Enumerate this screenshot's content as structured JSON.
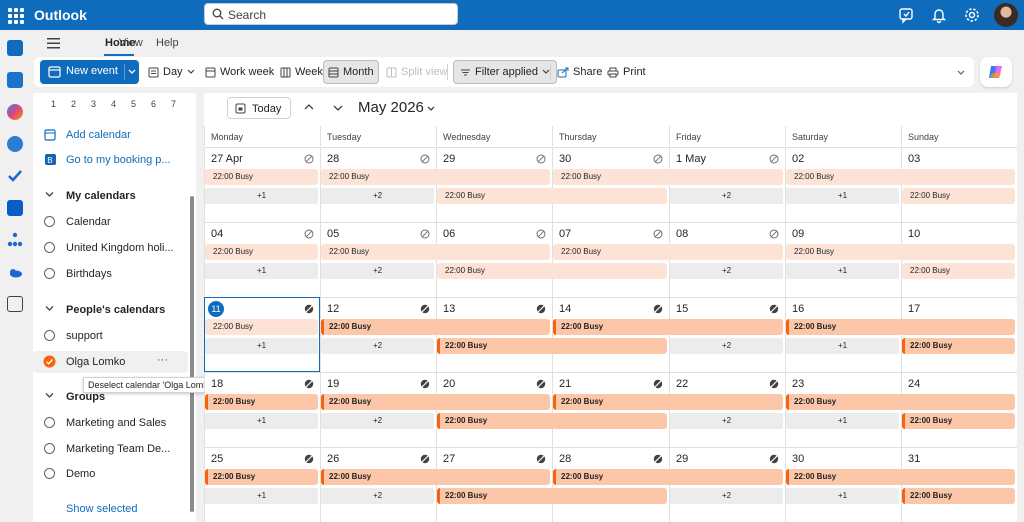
{
  "app": {
    "name": "Outlook"
  },
  "search": {
    "placeholder": "Search"
  },
  "ribbon": {
    "tabs": [
      "Home",
      "View",
      "Help"
    ]
  },
  "toolbar": {
    "new_event": "New event",
    "day": "Day",
    "work_week": "Work week",
    "week": "Week",
    "month": "Month",
    "split_view": "Split view",
    "filter": "Filter applied",
    "share": "Share",
    "print": "Print"
  },
  "mini_calendar_row": [
    "1",
    "2",
    "3",
    "4",
    "5",
    "6",
    "7"
  ],
  "left_pane": {
    "add_calendar": "Add calendar",
    "booking": "Go to my booking p...",
    "my_calendars": {
      "title": "My calendars",
      "items": [
        "Calendar",
        "United Kingdom holi...",
        "Birthdays"
      ]
    },
    "peoples_calendars": {
      "title": "People's calendars",
      "items": [
        "support",
        "Olga Lomko"
      ]
    },
    "item_more": "···",
    "groups": {
      "title": "Groups",
      "items": [
        "Marketing and Sales",
        "Marketing Team De...",
        "Demo"
      ]
    },
    "show_selected": "Show selected",
    "tooltip": "Deselect calendar 'Olga Lomko'"
  },
  "calendar": {
    "today": "Today",
    "month_title": "May 2026",
    "weekdays": [
      "Monday",
      "Tuesday",
      "Wednesday",
      "Thursday",
      "Friday",
      "Saturday",
      "Sunday"
    ],
    "weeks": [
      [
        "27 Apr",
        "28",
        "29",
        "30",
        "1 May",
        "02",
        "03"
      ],
      [
        "04",
        "05",
        "06",
        "07",
        "08",
        "09",
        "10"
      ],
      [
        "11",
        "12",
        "13",
        "14",
        "15",
        "16",
        "17"
      ],
      [
        "18",
        "19",
        "20",
        "21",
        "22",
        "23",
        "24"
      ],
      [
        "25",
        "26",
        "27",
        "28",
        "29",
        "30",
        "31"
      ]
    ],
    "event_label": "22:00 Busy",
    "more": [
      "+1",
      "+2"
    ]
  },
  "colors": {
    "brand": "#0f6cbd",
    "busy_light": "#fde3d6",
    "busy_dark": "#fcc6a8",
    "busy_accent": "#f7630c"
  }
}
